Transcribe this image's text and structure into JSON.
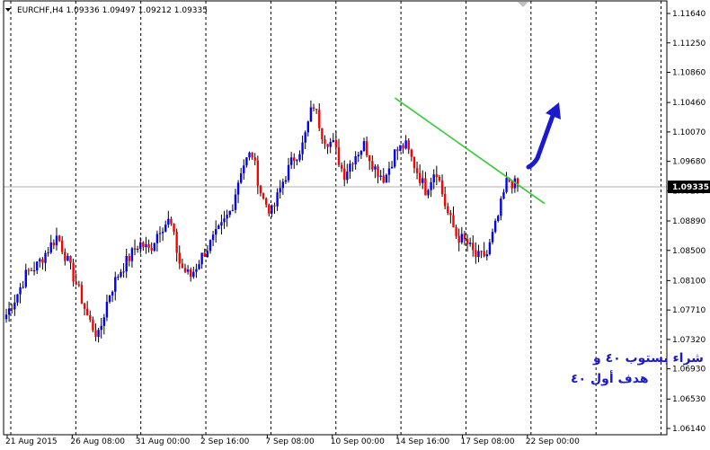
{
  "chart_data": {
    "type": "candlestick",
    "symbol_header": "EURCHF,H4  1.09336 1.09497 1.09212 1.09335",
    "current_price": "1.09335",
    "y_ticks": [
      "1.11640",
      "1.11250",
      "1.10860",
      "1.10460",
      "1.10070",
      "1.09680",
      "1.09290",
      "1.08890",
      "1.08500",
      "1.08100",
      "1.07710",
      "1.07320",
      "1.06930",
      "1.06530",
      "1.06140"
    ],
    "ylim": [
      1.0608,
      1.1172
    ],
    "x_ticks": [
      "21 Aug 2015",
      "26 Aug 08:00",
      "31 Aug 00:00",
      "2 Sep 16:00",
      "7 Sep 08:00",
      "10 Sep 00:00",
      "14 Sep 16:00",
      "17 Sep 08:00",
      "22 Sep 00:00"
    ],
    "grid": "vertical-dashed",
    "trendline": {
      "color": "#33cc33",
      "from": {
        "bar": 0.59,
        "price": 1.1052
      },
      "to": {
        "bar": 0.993,
        "price": 1.0912
      }
    },
    "arrow": {
      "color": "#1a1acc",
      "direction": "up-right"
    },
    "annotation": [
      "شراء بستوب ٤٠ و",
      "هدف أول ٤٠"
    ],
    "colors": {
      "bull": "#0000ff",
      "bear": "#ff0000",
      "wick": "#000000",
      "current_label_bg": "#000000"
    },
    "key_prices": [
      1.0765,
      1.079,
      1.082,
      1.083,
      1.085,
      1.087,
      1.0835,
      1.08,
      1.076,
      1.0735,
      1.079,
      1.082,
      1.084,
      1.086,
      1.085,
      1.088,
      1.089,
      1.083,
      1.0815,
      1.084,
      1.086,
      1.088,
      1.0905,
      1.096,
      1.098,
      1.092,
      1.09,
      1.094,
      1.097,
      1.099,
      1.1045,
      1.1,
      1.099,
      1.095,
      1.0975,
      1.099,
      1.096,
      1.0945,
      1.098,
      1.099,
      1.096,
      1.093,
      1.096,
      1.0905,
      1.087,
      1.086,
      1.084,
      1.0845,
      1.089,
      1.0945,
      1.0934
    ]
  }
}
